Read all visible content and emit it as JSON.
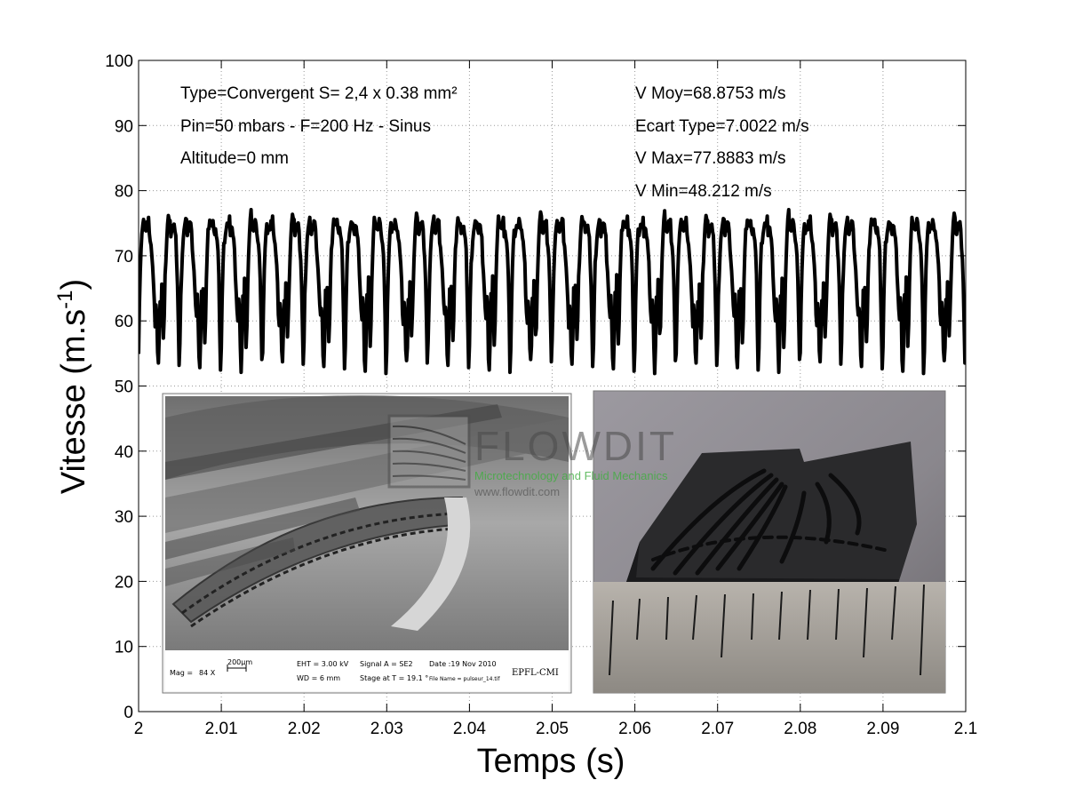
{
  "chart_data": {
    "type": "line",
    "title": "",
    "xlabel": "Temps (s)",
    "ylabel": "Vitesse (m.s",
    "ylabel_superscript": "-1",
    "ylabel_close": ")",
    "xlim": [
      2.0,
      2.1
    ],
    "ylim": [
      0,
      100
    ],
    "grid": true,
    "x_ticks": [
      2.0,
      2.01,
      2.02,
      2.03,
      2.04,
      2.05,
      2.06,
      2.07,
      2.08,
      2.09,
      2.1
    ],
    "x_tick_labels": [
      "2",
      "2.01",
      "2.02",
      "2.03",
      "2.04",
      "2.05",
      "2.06",
      "2.07",
      "2.08",
      "2.09",
      "2.1"
    ],
    "y_ticks": [
      0,
      10,
      20,
      30,
      40,
      50,
      60,
      70,
      80,
      90,
      100
    ],
    "y_tick_labels": [
      "0",
      "10",
      "20",
      "30",
      "40",
      "50",
      "60",
      "70",
      "80",
      "90",
      "100"
    ],
    "series": [
      {
        "name": "Vitesse",
        "color": "#000000",
        "signal": {
          "frequency_hz": 200,
          "samples_per_period": 50,
          "start": 2.0,
          "end": 2.1,
          "periodic_profile": [
            56,
            63,
            68,
            71,
            73,
            74,
            74.5,
            75,
            74.5,
            74,
            75,
            74,
            75,
            74.5,
            73,
            72,
            70,
            68,
            65,
            62,
            60,
            63,
            61,
            55,
            53,
            57,
            64,
            60,
            66,
            62,
            57,
            60,
            66,
            70,
            73,
            75,
            76,
            75,
            74.5,
            74,
            74.5,
            75,
            74,
            74.5,
            73,
            72,
            70,
            66,
            60,
            53
          ]
        }
      }
    ],
    "annotations": {
      "left": [
        "Type=Convergent S= 2,4 x 0.38 mm²",
        "Pin=50 mbars - F=200 Hz - Sinus",
        "Altitude=0 mm"
      ],
      "right": [
        "V Moy=68.8753 m/s",
        "Ecart Type=7.0022 m/s",
        "V Max=77.8883 m/s",
        "V Min=48.212 m/s"
      ]
    }
  },
  "inset_sem": {
    "mag_label": "Mag =",
    "mag_value": "84 X",
    "scale_label": "200µm",
    "eht": "EHT =  3.00 kV",
    "wd": "WD =    6 mm",
    "signal": "Signal A = SE2",
    "stage": "Stage at T =   19.1 °",
    "date": "Date :19 Nov 2010",
    "file": "File Name = pulseur_14.tif",
    "lab": "EPFL-CMI"
  },
  "watermark": {
    "brand": "FLOWDIT",
    "tagline": "Microtechnology and Fluid Mechanics",
    "url": "www.flowdit.com"
  },
  "colors": {
    "line": "#000000",
    "grid": "#9a9a9a",
    "sem_background": "#8e8e8e",
    "photo_background": "#7d7a80"
  }
}
